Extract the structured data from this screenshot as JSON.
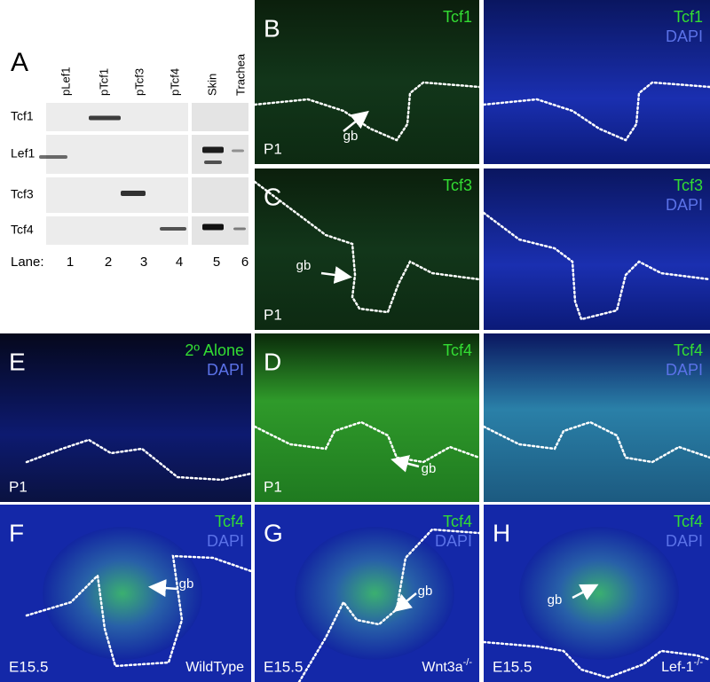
{
  "panel_a": {
    "letter": "A",
    "lanes": [
      "pLef1",
      "pTcf1",
      "pTcf3",
      "pTcf4",
      "Skin",
      "Trachea"
    ],
    "rows": [
      "Tcf1",
      "Lef1",
      "Tcf3",
      "Tcf4"
    ],
    "lane_label": "Lane:",
    "lane_numbers": [
      "1",
      "2",
      "3",
      "4",
      "5",
      "6"
    ]
  },
  "panels": [
    {
      "letter": "B",
      "stain": "Tcf1",
      "age": "P1",
      "arrow": "gb"
    },
    {
      "stain": "Tcf1",
      "dapi": "DAPI"
    },
    {
      "letter": "C",
      "stain": "Tcf3",
      "age": "P1",
      "arrow": "gb"
    },
    {
      "stain": "Tcf3",
      "dapi": "DAPI"
    },
    {
      "letter": "E",
      "stain": "2º Alone",
      "dapi": "DAPI",
      "age": "P1"
    },
    {
      "letter": "D",
      "stain": "Tcf4",
      "age": "P1",
      "arrow": "gb"
    },
    {
      "stain": "Tcf4",
      "dapi": "DAPI"
    },
    {
      "letter": "F",
      "stain": "Tcf4",
      "dapi": "DAPI",
      "age": "E15.5",
      "genotype": "WildType",
      "arrow": "gb"
    },
    {
      "letter": "G",
      "stain": "Tcf4",
      "dapi": "DAPI",
      "age": "E15.5",
      "genotype": "Wnt3a",
      "genotype_sup": "-/-",
      "arrow": "gb"
    },
    {
      "letter": "H",
      "stain": "Tcf4",
      "dapi": "DAPI",
      "age": "E15.5",
      "genotype": "Lef-1",
      "genotype_sup": "-/-",
      "arrow": "gb"
    }
  ]
}
